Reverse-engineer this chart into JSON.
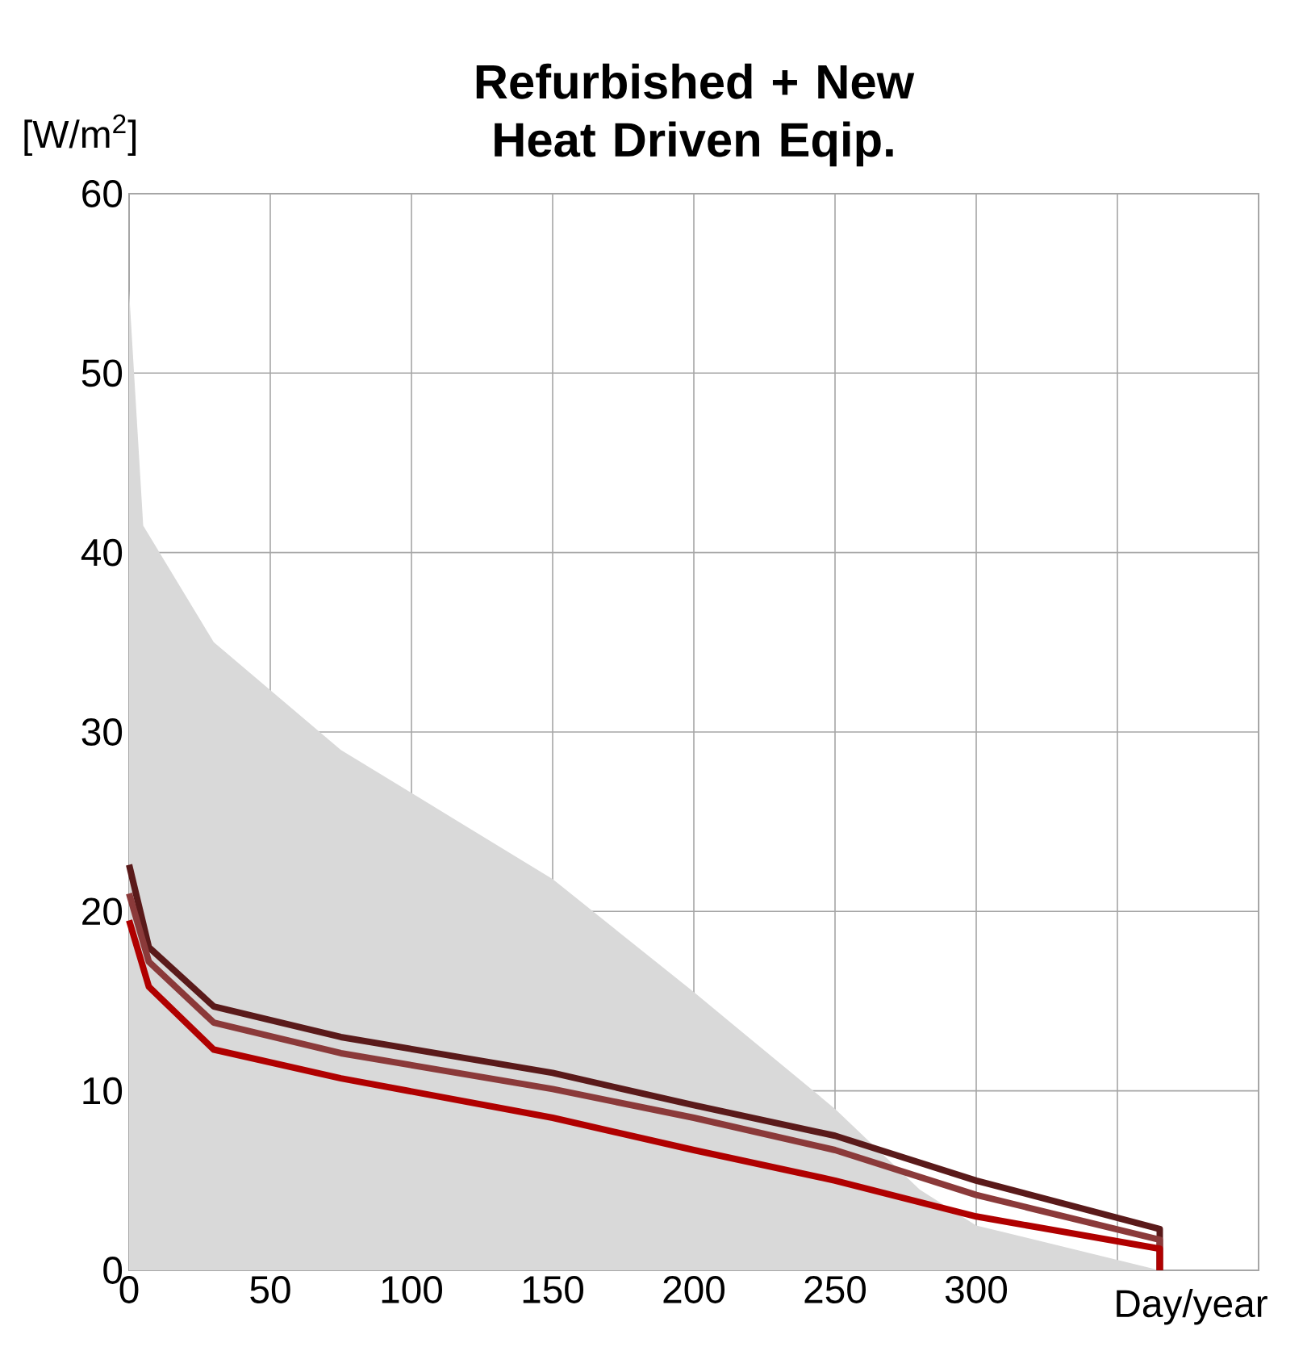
{
  "chart_data": {
    "type": "line",
    "title": "Refurbished + New Heat Driven Eqip.",
    "ylabel": "[W/m$^{2}$]",
    "xlabel": "Day/year",
    "xlim": [
      0,
      400
    ],
    "ylim": [
      0,
      60
    ],
    "xticks": [
      0,
      50,
      100,
      150,
      200,
      250,
      300,
      {
        "value": 350,
        "label": null
      }
    ],
    "yticks": [
      0,
      10,
      20,
      30,
      40,
      50,
      60
    ],
    "grid": true,
    "marker": "none",
    "line_style": "solid",
    "series": [
      {
        "type": "area",
        "color": "#d9d9d9",
        "x": [
          0,
          5,
          30,
          75,
          150,
          200,
          250,
          280,
          300,
          365
        ],
        "values": [
          54.6,
          41.5,
          35,
          29,
          21.8,
          15.5,
          9,
          4.5,
          2.5,
          0
        ]
      },
      {
        "color": "#5a1a1a",
        "x": [
          0,
          7,
          30,
          75,
          150,
          200,
          250,
          300,
          365,
          365
        ],
        "values": [
          22.6,
          18,
          14.7,
          13,
          11,
          9.2,
          7.5,
          5,
          2.3,
          0
        ]
      },
      {
        "color": "#8b3a3a",
        "x": [
          0,
          7,
          30,
          75,
          150,
          200,
          250,
          300,
          365,
          365
        ],
        "values": [
          21,
          17.2,
          13.8,
          12.1,
          10.1,
          8.5,
          6.7,
          4.2,
          1.7,
          0
        ]
      },
      {
        "color": "#b00000",
        "x": [
          0,
          7,
          30,
          75,
          150,
          200,
          250,
          300,
          365,
          365
        ],
        "values": [
          19.5,
          15.8,
          12.3,
          10.7,
          8.5,
          6.7,
          5,
          3,
          1.2,
          0
        ]
      }
    ]
  }
}
